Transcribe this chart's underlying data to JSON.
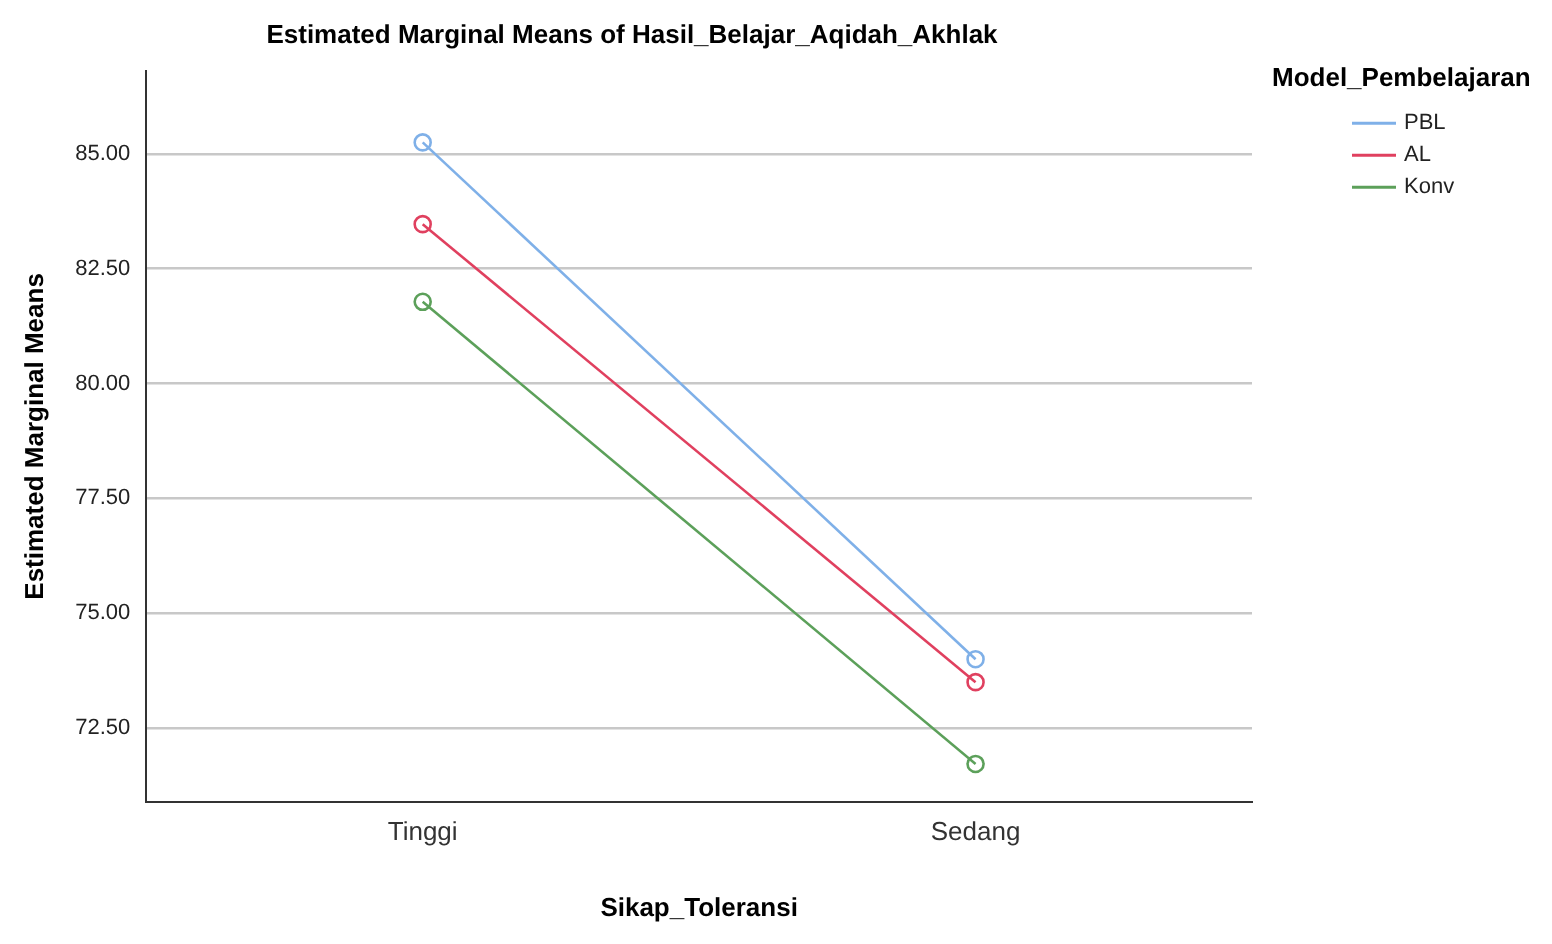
{
  "chart_data": {
    "type": "line",
    "title": "Estimated Marginal Means of Hasil_Belajar_Aqidah_Akhlak",
    "xlabel": "Sikap_Toleransi",
    "ylabel": "Estimated Marginal Means",
    "legend_title": "Model_Pembelajaran",
    "categories": [
      "Tinggi",
      "Sedang"
    ],
    "series": [
      {
        "name": "PBL",
        "color": "#7fb0e8",
        "values": [
          85.25,
          74.0
        ]
      },
      {
        "name": "AL",
        "color": "#e0405f",
        "values": [
          83.47,
          73.5
        ]
      },
      {
        "name": "Konv",
        "color": "#5ca05a",
        "values": [
          81.78,
          71.72
        ]
      }
    ],
    "ylim": [
      70.9,
      86.8
    ],
    "yticks": [
      {
        "value": 72.5,
        "label": "72.50"
      },
      {
        "value": 75,
        "label": "75.00"
      },
      {
        "value": 77.5,
        "label": "77.50"
      },
      {
        "value": 80,
        "label": "80.00"
      },
      {
        "value": 82.5,
        "label": "82.50"
      },
      {
        "value": 85,
        "label": "85.00"
      }
    ],
    "grid": "y",
    "legend": "right",
    "marker": "circle",
    "line_style": "solid"
  }
}
